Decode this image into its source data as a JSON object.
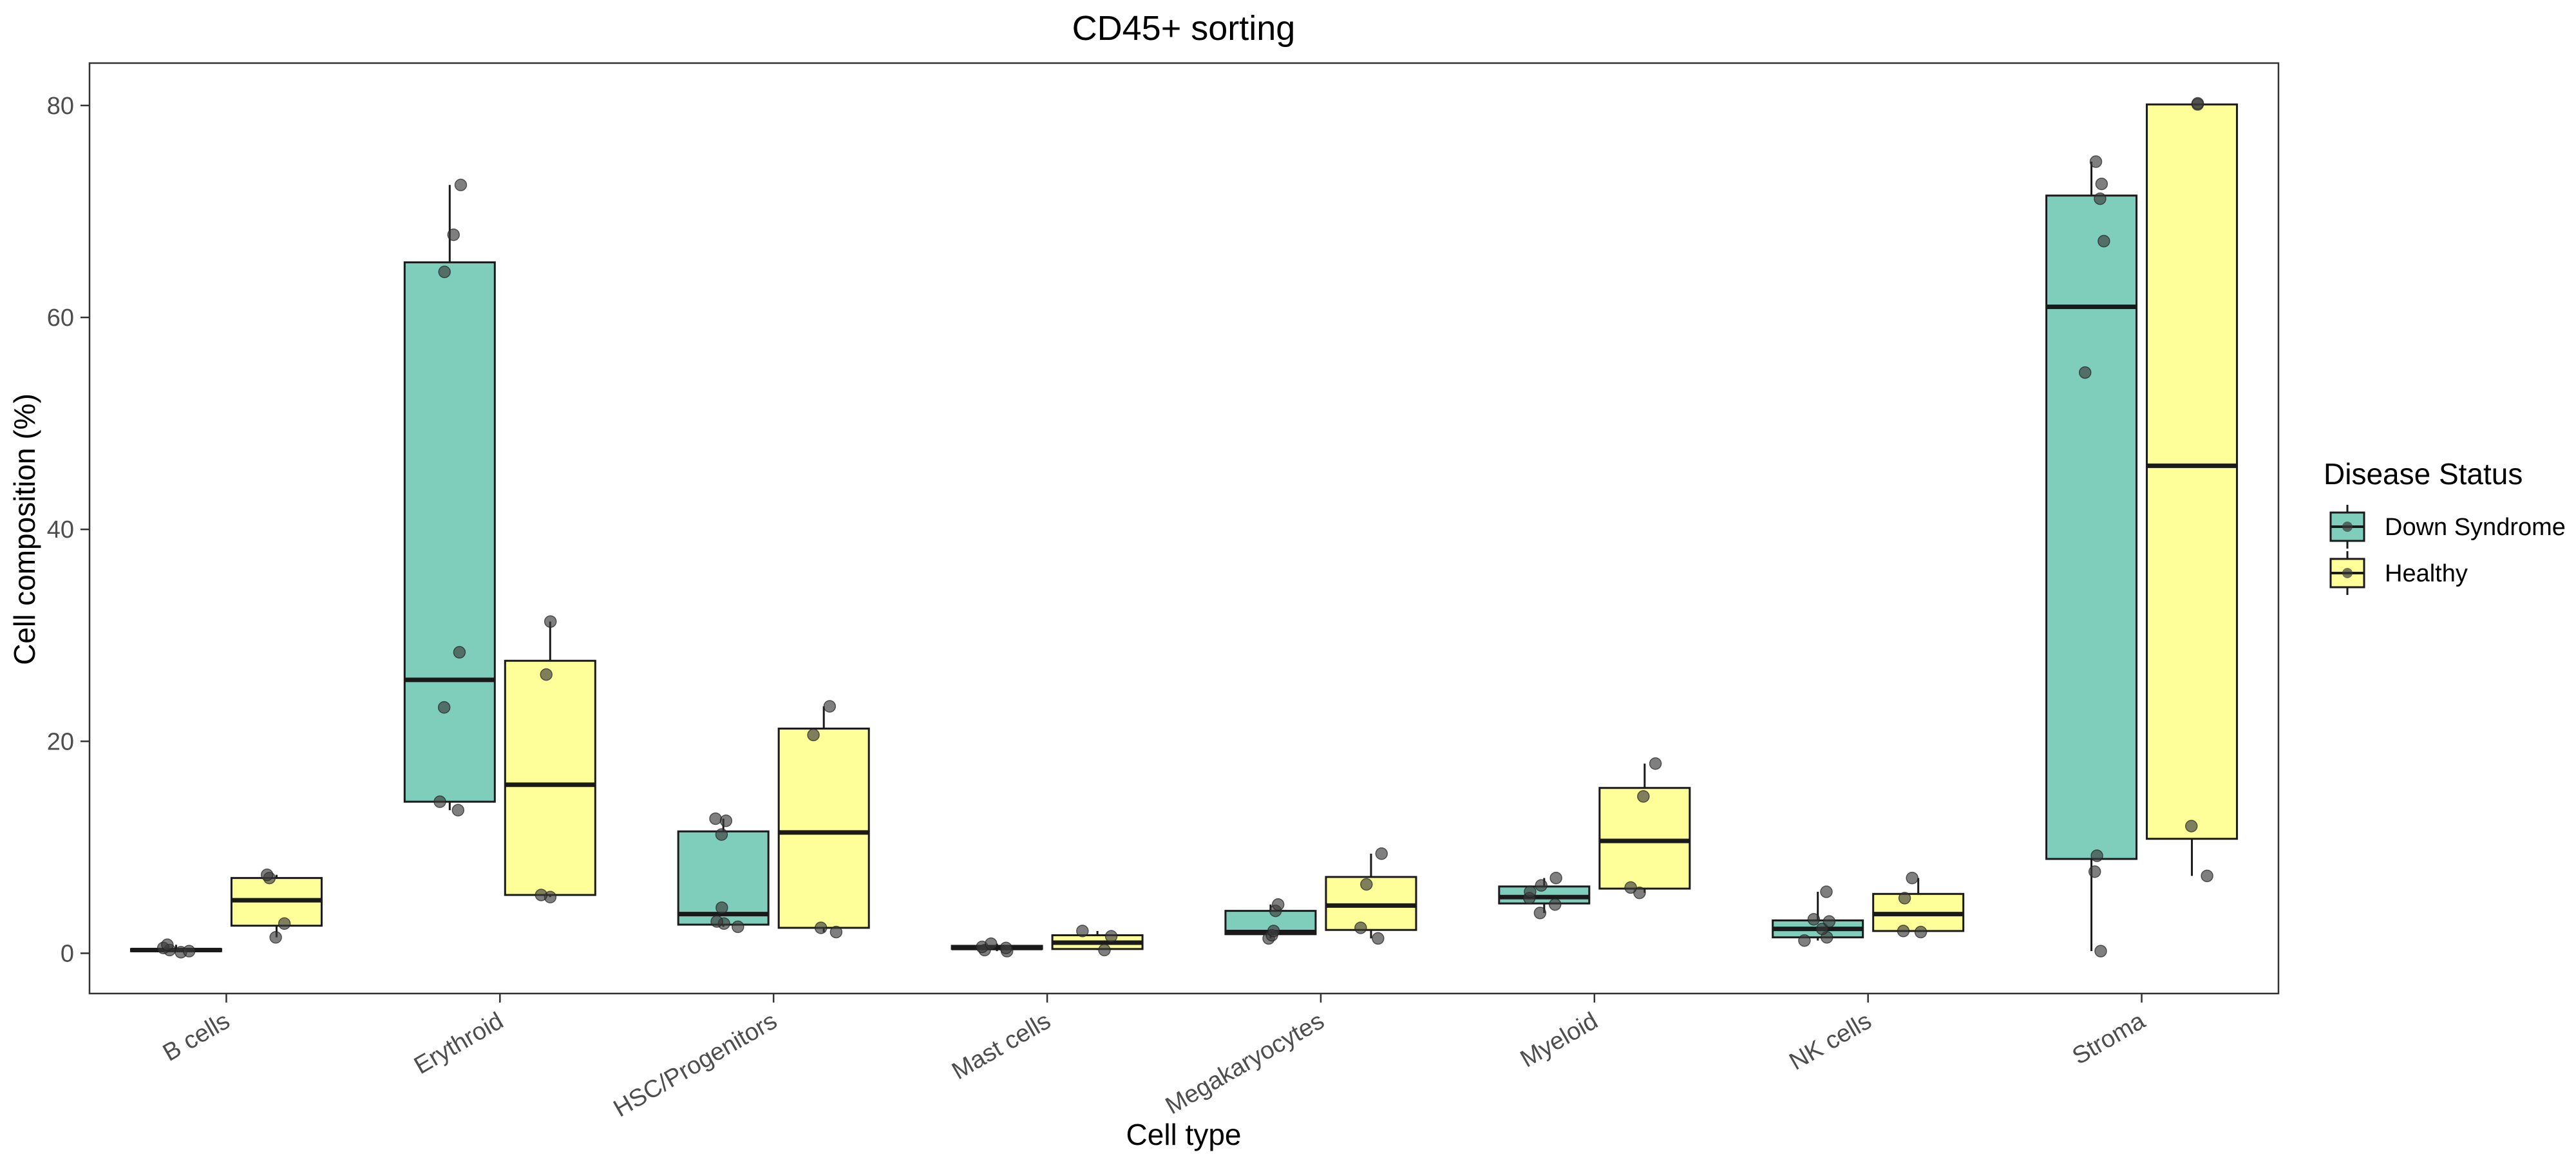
{
  "chart_data": {
    "type": "box",
    "title": "CD45+ sorting",
    "xlabel": "Cell type",
    "ylabel": "Cell composition (%)",
    "ylim": [
      -3.8,
      84
    ],
    "yticks": [
      0,
      20,
      40,
      60,
      80
    ],
    "categories": [
      "B cells",
      "Erythroid",
      "HSC/Progenitors",
      "Mast cells",
      "Megakaryocytes",
      "Myeloid",
      "NK cells",
      "Stroma"
    ],
    "legend": {
      "title": "Disease Status",
      "placement": "right"
    },
    "grid": false,
    "series": [
      {
        "name": "Down Syndrome",
        "color": "#7FCDBB",
        "boxes": [
          {
            "min": 0.1,
            "q1": 0.2,
            "median": 0.3,
            "q3": 0.4,
            "max": 0.8,
            "points": [
              0.1,
              0.2,
              0.3,
              0.5,
              0.8
            ]
          },
          {
            "min": 13.5,
            "q1": 14.3,
            "median": 25.8,
            "q3": 65.2,
            "max": 72.5,
            "points": [
              13.5,
              14.3,
              23.2,
              28.4,
              64.3,
              67.8,
              72.5
            ]
          },
          {
            "min": 2.5,
            "q1": 2.7,
            "median": 3.7,
            "q3": 11.5,
            "max": 12.7,
            "points": [
              2.5,
              2.8,
              3.0,
              4.3,
              11.2,
              12.5,
              12.7
            ]
          },
          {
            "min": 0.2,
            "q1": 0.4,
            "median": 0.5,
            "q3": 0.7,
            "max": 0.9,
            "points": [
              0.2,
              0.3,
              0.5,
              0.6,
              0.9
            ]
          },
          {
            "min": 1.4,
            "q1": 1.8,
            "median": 2.0,
            "q3": 4.0,
            "max": 4.6,
            "points": [
              1.4,
              1.7,
              2.1,
              4.0,
              4.6
            ]
          },
          {
            "min": 3.8,
            "q1": 4.7,
            "median": 5.3,
            "q3": 6.3,
            "max": 7.1,
            "points": [
              3.8,
              4.6,
              5.2,
              5.8,
              6.4,
              7.1
            ]
          },
          {
            "min": 1.2,
            "q1": 1.5,
            "median": 2.3,
            "q3": 3.1,
            "max": 5.8,
            "points": [
              1.2,
              1.5,
              2.3,
              3.0,
              3.2,
              5.8
            ]
          },
          {
            "min": 0.2,
            "q1": 8.9,
            "median": 61.0,
            "q3": 71.5,
            "max": 74.7,
            "points": [
              0.2,
              7.7,
              9.2,
              54.8,
              67.2,
              71.2,
              72.6,
              74.7
            ]
          }
        ]
      },
      {
        "name": "Healthy",
        "color": "#FFFF99",
        "boxes": [
          {
            "min": 1.5,
            "q1": 2.6,
            "median": 5.0,
            "q3": 7.1,
            "max": 7.4,
            "points": [
              1.5,
              2.8,
              7.1,
              7.4
            ]
          },
          {
            "min": 5.3,
            "q1": 5.5,
            "median": 15.9,
            "q3": 27.6,
            "max": 31.3,
            "points": [
              5.3,
              5.5,
              26.3,
              31.3
            ]
          },
          {
            "min": 2.0,
            "q1": 2.4,
            "median": 11.4,
            "q3": 21.2,
            "max": 23.3,
            "points": [
              2.0,
              2.4,
              20.6,
              23.3
            ]
          },
          {
            "min": 0.3,
            "q1": 0.4,
            "median": 1.0,
            "q3": 1.7,
            "max": 2.1,
            "points": [
              0.3,
              1.6,
              2.1
            ]
          },
          {
            "min": 1.4,
            "q1": 2.2,
            "median": 4.5,
            "q3": 7.2,
            "max": 9.4,
            "points": [
              1.4,
              2.4,
              6.5,
              9.4
            ]
          },
          {
            "min": 5.7,
            "q1": 6.1,
            "median": 10.6,
            "q3": 15.6,
            "max": 17.9,
            "points": [
              5.7,
              6.2,
              14.8,
              17.9
            ]
          },
          {
            "min": 2.0,
            "q1": 2.1,
            "median": 3.7,
            "q3": 5.6,
            "max": 7.1,
            "points": [
              2.0,
              2.1,
              5.2,
              7.1
            ]
          },
          {
            "min": 7.3,
            "q1": 10.8,
            "median": 46.0,
            "q3": 80.1,
            "max": 80.2,
            "points": [
              7.3,
              12.0,
              80.1,
              80.2
            ]
          }
        ]
      }
    ]
  }
}
